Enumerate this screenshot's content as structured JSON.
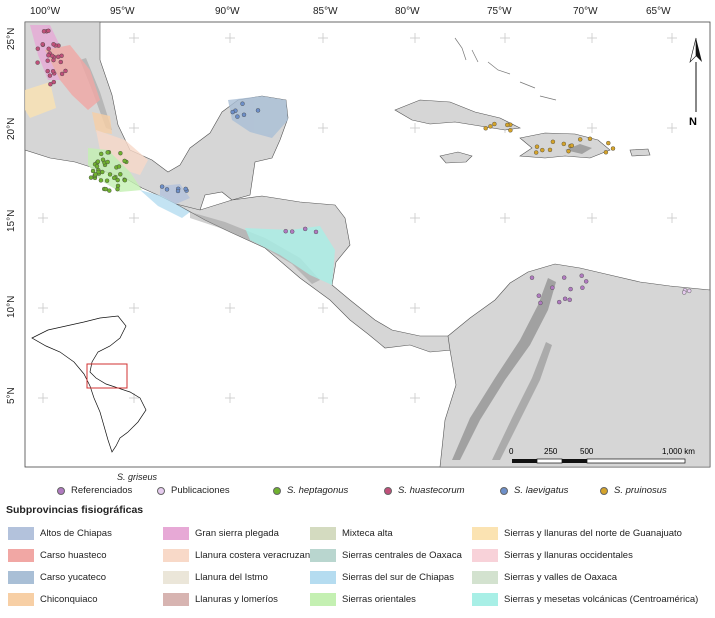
{
  "map": {
    "lon_labels": [
      "100°W",
      "95°W",
      "90°W",
      "85°W",
      "80°W",
      "75°W",
      "70°W",
      "65°W"
    ],
    "lat_labels": [
      "25°N",
      "20°N",
      "15°N",
      "10°N",
      "5°N"
    ],
    "north_label": "N",
    "scale": {
      "ticks": [
        "0",
        "250",
        "500",
        "1,000 km"
      ]
    },
    "colors": {
      "land": "#d6d6d6",
      "ocean": "#ffffff",
      "highland": "#8a8a8a",
      "border": "#555555"
    }
  },
  "occurrence_legend": {
    "griseus_label": "S. griseus",
    "items": [
      {
        "label": "Referenciados",
        "color": "#b07ac0",
        "italic": false
      },
      {
        "label": "Publicaciones",
        "color": "#e6ccef",
        "italic": false
      },
      {
        "label": "S. heptagonus",
        "color": "#6fb12f",
        "italic": true
      },
      {
        "label": "S. huastecorum",
        "color": "#c0507a",
        "italic": true
      },
      {
        "label": "S. laevigatus",
        "color": "#6d8fc9",
        "italic": true
      },
      {
        "label": "S. pruinosus",
        "color": "#d4a32a",
        "italic": true
      }
    ]
  },
  "subprovinces": {
    "title": "Subprovincias fisiográficas",
    "columns": [
      [
        {
          "label": "Altos de Chiapas",
          "color": "#b3c2dc"
        },
        {
          "label": "Carso huasteco",
          "color": "#f1a7a4"
        },
        {
          "label": "Carso yucateco",
          "color": "#a9bfd6"
        },
        {
          "label": "Chiconquiaco",
          "color": "#f7cfa5"
        }
      ],
      [
        {
          "label": "Gran sierra plegada",
          "color": "#e7a9d6"
        },
        {
          "label": "Llanura costera veracruzana",
          "color": "#f8d9c8"
        },
        {
          "label": "Llanura del Istmo",
          "color": "#ebe6d9"
        },
        {
          "label": "Llanuras y lomeríos",
          "color": "#d7b4b1"
        }
      ],
      [
        {
          "label": "Mixteca alta",
          "color": "#d4dbc0"
        },
        {
          "label": "Sierras centrales de Oaxaca",
          "color": "#b9d6cf"
        },
        {
          "label": "Sierras del sur de Chiapas",
          "color": "#b5dcf0"
        },
        {
          "label": "Sierras orientales",
          "color": "#c4f0b2"
        }
      ],
      [
        {
          "label": "Sierras y llanuras del norte de Guanajuato",
          "color": "#fbe3b2"
        },
        {
          "label": "Sierras y llanuras occidentales",
          "color": "#f8d2d9"
        },
        {
          "label": "Sierras y valles de Oaxaca",
          "color": "#d3e2cf"
        },
        {
          "label": "Sierras y mesetas volcánicas (Centroamérica)",
          "color": "#a8efe6"
        }
      ]
    ]
  }
}
